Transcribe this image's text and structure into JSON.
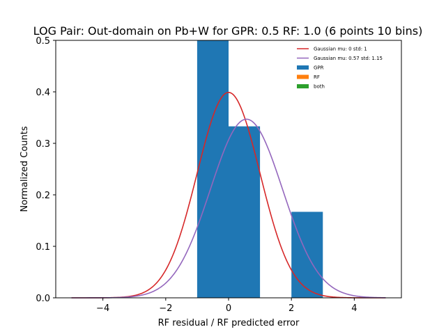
{
  "chart_data": {
    "type": "bar",
    "title": "LOG Pair: Out-domain on Pb+W for GPR: 0.5 RF: 1.0 (6 points 10 bins)",
    "xlabel": "RF residual / RF predicted error",
    "ylabel": "Normalized Counts",
    "xlim": [
      -5.5,
      5.5
    ],
    "ylim": [
      0,
      0.5
    ],
    "xticks": [
      -4,
      -2,
      0,
      2,
      4
    ],
    "yticks": [
      0.0,
      0.1,
      0.2,
      0.3,
      0.4,
      0.5
    ],
    "xtick_labels": [
      "−4",
      "−2",
      "0",
      "2",
      "4"
    ],
    "ytick_labels": [
      "0.0",
      "0.1",
      "0.2",
      "0.3",
      "0.4",
      "0.5"
    ],
    "legend_position": "top-right",
    "bars": [
      {
        "x0": -1,
        "x1": 0,
        "value": 0.5
      },
      {
        "x0": 0,
        "x1": 1,
        "value": 0.333
      },
      {
        "x0": 2,
        "x1": 3,
        "value": 0.167
      }
    ],
    "curves": [
      {
        "name": "Gaussian mu: 0 std: 1",
        "mu": 0,
        "std": 1,
        "color": "#d62728"
      },
      {
        "name": "Gaussian mu: 0.57 std: 1.15",
        "mu": 0.57,
        "std": 1.15,
        "color": "#9467bd"
      }
    ],
    "curve_range": [
      -5,
      5
    ],
    "series": [
      {
        "name": "GPR",
        "color": "#1f77b4"
      },
      {
        "name": "RF",
        "color": "#ff7f0e"
      },
      {
        "name": "both",
        "color": "#2ca02c"
      }
    ]
  }
}
